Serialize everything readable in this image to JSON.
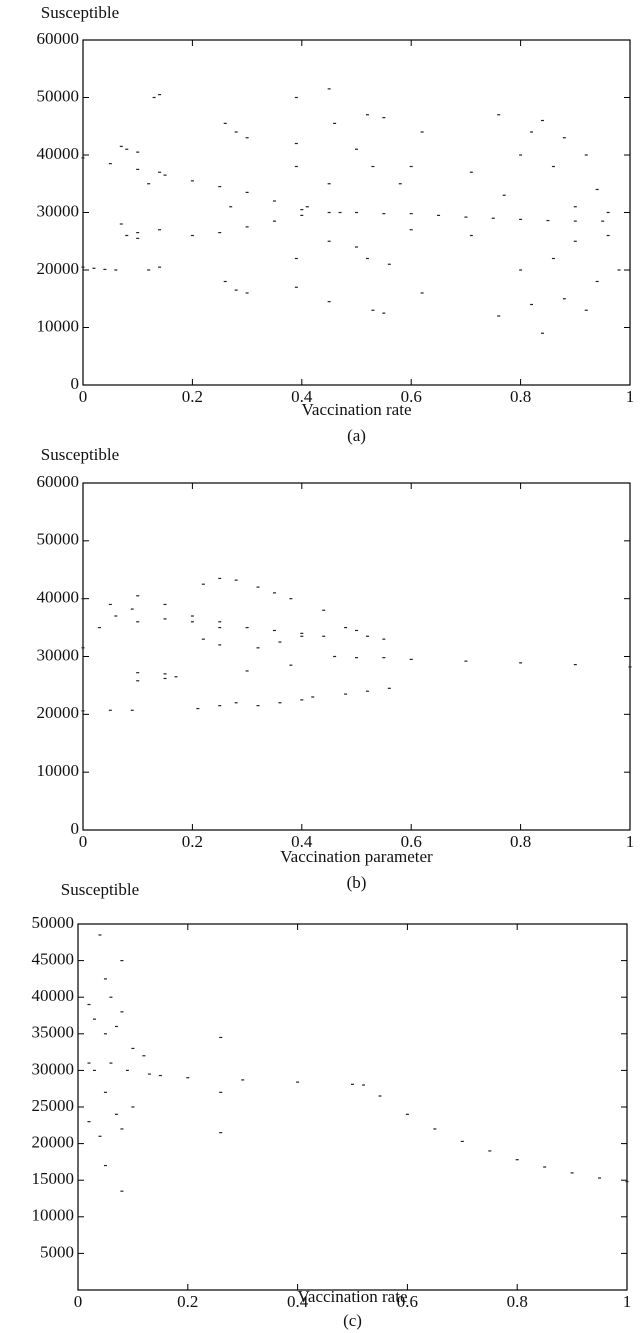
{
  "chart_data": [
    {
      "type": "scatter",
      "title": "Susceptible",
      "xlabel": "Vaccination rate",
      "caption": "(a)",
      "color": "#222222",
      "xlim": [
        0,
        1
      ],
      "ylim": [
        0,
        60000
      ],
      "xticks": [
        0,
        0.2,
        0.4,
        0.6,
        0.8,
        1
      ],
      "yticks": [
        0,
        10000,
        20000,
        30000,
        40000,
        50000,
        60000
      ],
      "x": [
        0,
        0.02,
        0.04,
        0.06,
        0,
        0.05,
        0.1,
        0.15,
        0.2,
        0.25,
        0.3,
        0.35,
        0.4,
        0.2,
        0.25,
        0.3,
        0.35,
        0.4,
        0.45,
        0.5,
        0.55,
        0.6,
        0.65,
        0.7,
        0.75,
        0.8,
        0.85,
        0.9,
        0.95,
        0.07,
        0.08,
        0.1,
        0.07,
        0.08,
        0.1,
        0.12,
        0.13,
        0.14,
        0.14,
        0.14,
        0.14,
        0.12,
        0.1,
        0.26,
        0.28,
        0.3,
        0.26,
        0.28,
        0.3,
        0.27,
        0.39,
        0.39,
        0.39,
        0.39,
        0.39,
        0.41,
        0.45,
        0.46,
        0.45,
        0.45,
        0.45,
        0.47,
        0.5,
        0.52,
        0.53,
        0.5,
        0.52,
        0.53,
        0.55,
        0.56,
        0.55,
        0.58,
        0.6,
        0.6,
        0.62,
        0.62,
        0.71,
        0.71,
        0.76,
        0.76,
        0.77,
        0.8,
        0.8,
        0.82,
        0.82,
        0.84,
        0.84,
        0.86,
        0.86,
        0.88,
        0.88,
        0.9,
        0.9,
        0.92,
        0.92,
        0.94,
        0.94,
        0.96,
        0.96,
        0.98
      ],
      "values": [
        20500,
        20300,
        20100,
        20000,
        39500,
        38500,
        37500,
        36500,
        35500,
        34500,
        33500,
        32000,
        30500,
        26000,
        26500,
        27500,
        28500,
        29500,
        30000,
        30000,
        29800,
        29800,
        29500,
        29200,
        29000,
        28800,
        28600,
        28500,
        28500,
        41500,
        41000,
        40500,
        28000,
        26000,
        25500,
        20000,
        50000,
        50500,
        37000,
        27000,
        20500,
        35000,
        26500,
        45500,
        44000,
        43000,
        18000,
        16500,
        16000,
        31000,
        50000,
        42000,
        38000,
        22000,
        17000,
        31000,
        51500,
        45500,
        35000,
        25000,
        14500,
        30000,
        41000,
        47000,
        38000,
        24000,
        22000,
        13000,
        46500,
        21000,
        12500,
        35000,
        38000,
        27000,
        44000,
        16000,
        37000,
        26000,
        47000,
        12000,
        33000,
        40000,
        20000,
        44000,
        14000,
        46000,
        9000,
        38000,
        22000,
        43000,
        15000,
        31000,
        25000,
        40000,
        13000,
        34000,
        18000,
        30000,
        26000,
        20000
      ]
    },
    {
      "type": "scatter",
      "title": "Susceptible",
      "xlabel": "Vaccination parameter",
      "caption": "(b)",
      "color": "#222222",
      "xlim": [
        0,
        1
      ],
      "ylim": [
        0,
        60000
      ],
      "xticks": [
        0,
        0.2,
        0.4,
        0.6,
        0.8,
        1
      ],
      "yticks": [
        0,
        10000,
        20000,
        30000,
        40000,
        50000,
        60000
      ],
      "x": [
        0,
        0.05,
        0.09,
        0,
        0.05,
        0.09,
        0,
        0.03,
        0.06,
        0.1,
        0.15,
        0.2,
        0.25,
        0.3,
        0.35,
        0.4,
        0.1,
        0.15,
        0.2,
        0.25,
        0.1,
        0.15,
        0.17,
        0.1,
        0.15,
        0.22,
        0.25,
        0.28,
        0.22,
        0.25,
        0.21,
        0.25,
        0.28,
        0.3,
        0.32,
        0.35,
        0.38,
        0.32,
        0.36,
        0.4,
        0.32,
        0.36,
        0.4,
        0.42,
        0.38,
        0.44,
        0.44,
        0.46,
        0.48,
        0.5,
        0.52,
        0.55,
        0.48,
        0.52,
        0.56,
        0.5,
        0.55,
        0.6,
        0.7,
        0.8,
        0.9,
        1
      ],
      "values": [
        40000,
        39000,
        38200,
        20600,
        20700,
        20700,
        31500,
        35000,
        37000,
        40500,
        39000,
        37000,
        36000,
        35000,
        34500,
        34000,
        36000,
        36500,
        36000,
        35000,
        27200,
        27000,
        26500,
        25800,
        26200,
        42500,
        43500,
        43200,
        33000,
        32000,
        21000,
        21500,
        22000,
        27500,
        42000,
        41000,
        40000,
        31500,
        32500,
        33500,
        21500,
        22000,
        22500,
        23000,
        28500,
        38000,
        33500,
        30000,
        35000,
        34500,
        33500,
        33000,
        23500,
        24000,
        24500,
        29800,
        29800,
        29500,
        29200,
        28900,
        28600,
        28200
      ]
    },
    {
      "type": "scatter",
      "title": "Susceptible",
      "xlabel": "Vaccination rate",
      "caption": "(c)",
      "color": "#222222",
      "xlim": [
        0,
        1
      ],
      "ylim": [
        0,
        50000
      ],
      "xticks": [
        0,
        0.2,
        0.4,
        0.6,
        0.8,
        1
      ],
      "yticks": [
        5000,
        10000,
        15000,
        20000,
        25000,
        30000,
        35000,
        40000,
        45000,
        50000
      ],
      "x": [
        0.02,
        0.02,
        0.02,
        0.03,
        0.03,
        0.04,
        0.04,
        0.05,
        0.05,
        0.05,
        0.05,
        0.06,
        0.06,
        0.07,
        0.07,
        0.08,
        0.08,
        0.08,
        0.08,
        0.09,
        0.1,
        0.1,
        0.12,
        0.13,
        0.26,
        0.26,
        0.26,
        0.15,
        0.2,
        0.3,
        0.4,
        0.5,
        0.52,
        0.55,
        0.6,
        0.65,
        0.7,
        0.75,
        0.8,
        0.85,
        0.9,
        0.95,
        1
      ],
      "values": [
        39000,
        31000,
        23000,
        37000,
        30000,
        48500,
        21000,
        42500,
        17000,
        35000,
        27000,
        31000,
        40000,
        24000,
        36000,
        45000,
        13500,
        38000,
        22000,
        30000,
        33000,
        25000,
        32000,
        29500,
        34500,
        21500,
        27000,
        29300,
        29000,
        28700,
        28400,
        28100,
        28000,
        26500,
        24000,
        22000,
        20300,
        19000,
        17800,
        16800,
        16000,
        15300,
        14800
      ]
    }
  ]
}
